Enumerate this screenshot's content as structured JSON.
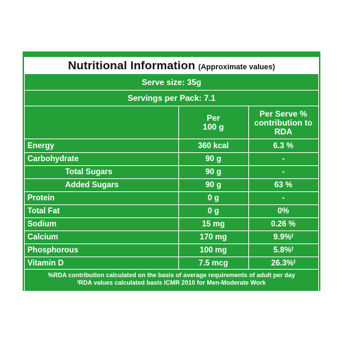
{
  "title": "Nutritional Information",
  "title_note": "(Approximate values)",
  "serve_size": "Serve size: 35g",
  "servings_per_pack": "Servings per Pack: 7.1",
  "headers": {
    "per": "Per 100 g",
    "rda": "Per Serve % contribution to RDA"
  },
  "rows": [
    {
      "name": "Energy",
      "per": "360 kcal",
      "rda": "6.3 %",
      "indent": false
    },
    {
      "name": "Carbohydrate",
      "per": "90 g",
      "rda": "-",
      "indent": false
    },
    {
      "name": "Total Sugars",
      "per": "90 g",
      "rda": "-",
      "indent": true
    },
    {
      "name": "Added Sugars",
      "per": "90 g",
      "rda": "63 %",
      "indent": true
    },
    {
      "name": "Protein",
      "per": "0 g",
      "rda": "-",
      "indent": false
    },
    {
      "name": "Total Fat",
      "per": "0 g",
      "rda": "0%",
      "indent": false
    },
    {
      "name": "Sodium",
      "per": "15 mg",
      "rda": "0.26 %",
      "indent": false
    },
    {
      "name": "Calcium",
      "per": "170 mg",
      "rda": "9.9%ᶠ",
      "indent": false
    },
    {
      "name": "Phosphorous",
      "per": "100 mg",
      "rda": "5.8%ᶠ",
      "indent": false
    },
    {
      "name": "Vitamin D",
      "per": "7.5 mcg",
      "rda": "26.3%ᶠ",
      "indent": false
    }
  ],
  "footnotes": [
    "%RDA contribution calculated on the basis of average requirements of adult per day",
    "ᶠRDA values calculated basis ICMR 2010 for Men-Moderate Work"
  ],
  "colors": {
    "panel": "#25a039",
    "text": "#ffffff"
  }
}
